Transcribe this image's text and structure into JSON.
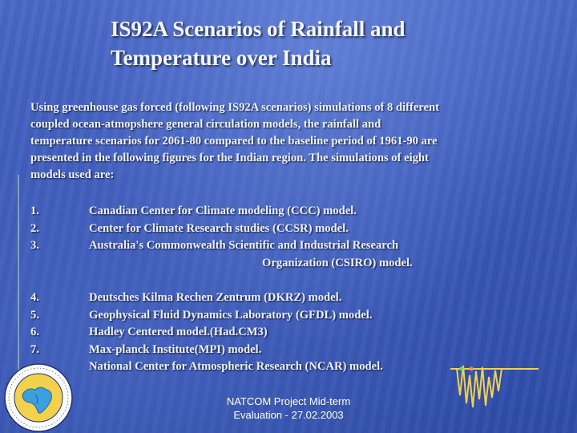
{
  "title": {
    "line1": "IS92A Scenarios of Rainfall and",
    "line2": "Temperature over India"
  },
  "intro": {
    "lines": [
      "Using greenhouse gas forced (following IS92A scenarios) simulations of 8 different",
      "coupled ocean-atmopshere general circulation models, the rainfall and",
      "temperature scenarios for 2061-80 compared to the baseline period of 1961-90 are",
      "presented in the following figures for the Indian region.  The simulations of eight",
      "models used are:"
    ]
  },
  "models_group1": [
    {
      "num": "1.",
      "text": "Canadian Center for Climate modeling (CCC) model."
    },
    {
      "num": "2.",
      "text": "Center for Climate Research studies (CCSR) model."
    },
    {
      "num": "3.",
      "text": "Australia's Commonwealth Scientific and Industrial Research"
    },
    {
      "num": "",
      "text": "Organization (CSIRO) model."
    }
  ],
  "models_group2": [
    {
      "num": "4.",
      "text": "Deutsches Kilma Rechen Zentrum (DKRZ) model."
    },
    {
      "num": "5.",
      "text": "Geophysical Fluid Dynamics Laboratory (GFDL) model."
    },
    {
      "num": "6.",
      "text": "Hadley Centered model.(Had.CM3)"
    },
    {
      "num": "7.",
      "text": "Max-planck Institute(MPI) model."
    },
    {
      "num": "",
      "text": "National Center for Atmospheric Research (NCAR) model."
    }
  ],
  "footer": {
    "line1": "NATCOM Project Mid-term",
    "line2": "Evaluation - 27.02.2003"
  },
  "icons": {
    "logo": "natcom-logo-icon",
    "decoration": "seismograph-wave-icon"
  },
  "colors": {
    "background": "#3a58b8",
    "text": "#ffffff",
    "accent": "#f2d24a"
  }
}
